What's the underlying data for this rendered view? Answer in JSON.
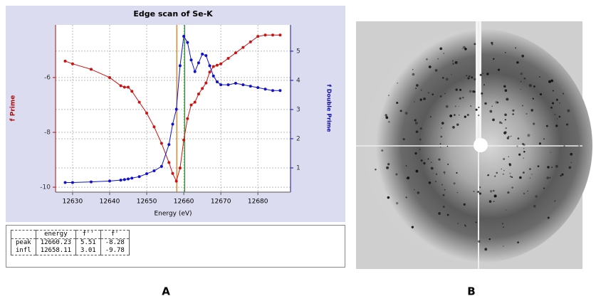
{
  "chart_data": {
    "type": "line",
    "title": "Edge scan of Se-K",
    "xlabel": "Energy (eV)",
    "ylabel": "f Prime",
    "y2label": "f Double Prime",
    "x": [
      12628,
      12630,
      12635,
      12640,
      12643,
      12644,
      12645,
      12646,
      12648,
      12650,
      12652,
      12654,
      12656,
      12657,
      12658,
      12659,
      12660,
      12661,
      12662,
      12663,
      12664,
      12665,
      12666,
      12667,
      12668,
      12669,
      12670,
      12672,
      12674,
      12676,
      12678,
      12680,
      12682,
      12684,
      12686
    ],
    "series": [
      {
        "name": "f Prime",
        "color": "#cc1111",
        "values": [
          -5.4,
          -5.5,
          -5.7,
          -6.0,
          -6.3,
          -6.35,
          -6.35,
          -6.5,
          -6.9,
          -7.3,
          -7.8,
          -8.4,
          -9.1,
          -9.5,
          -9.78,
          -9.3,
          -8.28,
          -7.5,
          -7.0,
          -6.9,
          -6.6,
          -6.4,
          -6.2,
          -5.8,
          -5.6,
          -5.55,
          -5.5,
          -5.3,
          -5.1,
          -4.9,
          -4.7,
          -4.5,
          -4.45,
          -4.45,
          -4.45
        ]
      },
      {
        "name": "f Double Prime",
        "color": "#1111cc",
        "axis": "y2",
        "values": [
          0.5,
          0.5,
          0.52,
          0.55,
          0.58,
          0.6,
          0.62,
          0.65,
          0.7,
          0.8,
          0.9,
          1.05,
          1.8,
          2.5,
          3.01,
          4.5,
          5.51,
          5.3,
          4.7,
          4.3,
          4.6,
          4.9,
          4.85,
          4.5,
          4.15,
          3.95,
          3.85,
          3.85,
          3.9,
          3.85,
          3.8,
          3.75,
          3.7,
          3.65,
          3.65
        ]
      }
    ],
    "markers": [
      {
        "x": 12658.11,
        "color": "#e07000"
      },
      {
        "x": 12660.23,
        "color": "#118811"
      }
    ],
    "xlim": [
      12625.4,
      12688.8
    ],
    "xticks": [
      12630,
      12640,
      12650,
      12660,
      12670,
      12680
    ],
    "ylim": [
      -10.18,
      -4.08
    ],
    "yticks": [
      -10,
      -8,
      -6
    ],
    "y2lim": [
      0.17,
      5.9
    ],
    "y2ticks": [
      1,
      2,
      3,
      4,
      5
    ],
    "grid": true
  },
  "table": {
    "header": [
      "",
      "energy",
      "f''",
      "f'"
    ],
    "rows": [
      [
        "peak",
        "12660.23",
        "5.51",
        "-8.28"
      ],
      [
        "infl",
        "12658.11",
        "3.01",
        "-9.78"
      ]
    ]
  },
  "panel_labels": [
    "A",
    "B"
  ]
}
